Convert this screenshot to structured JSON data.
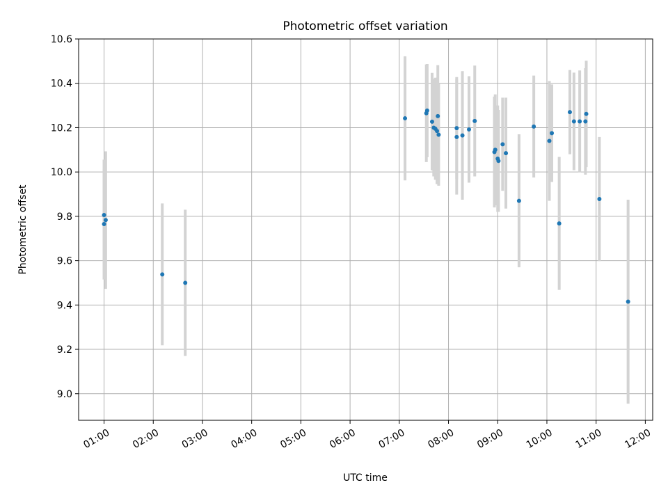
{
  "chart_data": {
    "type": "scatter",
    "title": "Photometric offset variation",
    "xlabel": "UTC time",
    "ylabel": "Photometric offset",
    "x_ticks": [
      "01:00",
      "02:00",
      "03:00",
      "04:00",
      "05:00",
      "06:00",
      "07:00",
      "08:00",
      "09:00",
      "10:00",
      "11:00",
      "12:00"
    ],
    "y_ticks": [
      "9.0",
      "9.2",
      "9.4",
      "9.6",
      "9.8",
      "10.0",
      "10.2",
      "10.4",
      "10.6"
    ],
    "xlim": [
      "00:29",
      "12:09"
    ],
    "ylim": [
      8.88,
      10.6
    ],
    "grid": true,
    "colors": {
      "points": "#1f77b4",
      "errorbars": "#d3d3d3",
      "grid": "#b0b0b0"
    },
    "points": [
      {
        "x": "01:00",
        "y": 9.806,
        "err": 0.25
      },
      {
        "x": "01:00",
        "y": 9.765,
        "err": 0.25
      },
      {
        "x": "01:02",
        "y": 9.783,
        "err": 0.31
      },
      {
        "x": "02:11",
        "y": 9.538,
        "err": 0.32
      },
      {
        "x": "02:39",
        "y": 9.5,
        "err": 0.33
      },
      {
        "x": "07:07",
        "y": 10.242,
        "err": 0.28
      },
      {
        "x": "07:33",
        "y": 10.265,
        "err": 0.22
      },
      {
        "x": "07:34",
        "y": 10.277,
        "err": 0.21
      },
      {
        "x": "07:40",
        "y": 10.227,
        "err": 0.22
      },
      {
        "x": "07:42",
        "y": 10.2,
        "err": 0.22
      },
      {
        "x": "07:44",
        "y": 10.195,
        "err": 0.23
      },
      {
        "x": "07:46",
        "y": 10.185,
        "err": 0.24
      },
      {
        "x": "07:47",
        "y": 10.252,
        "err": 0.23
      },
      {
        "x": "07:48",
        "y": 10.168,
        "err": 0.23
      },
      {
        "x": "08:10",
        "y": 10.158,
        "err": 0.26
      },
      {
        "x": "08:10",
        "y": 10.198,
        "err": 0.23
      },
      {
        "x": "08:17",
        "y": 10.165,
        "err": 0.29
      },
      {
        "x": "08:25",
        "y": 10.192,
        "err": 0.24
      },
      {
        "x": "08:32",
        "y": 10.23,
        "err": 0.25
      },
      {
        "x": "08:56",
        "y": 10.09,
        "err": 0.25
      },
      {
        "x": "08:57",
        "y": 10.1,
        "err": 0.25
      },
      {
        "x": "09:00",
        "y": 10.06,
        "err": 0.24
      },
      {
        "x": "09:01",
        "y": 10.05,
        "err": 0.23
      },
      {
        "x": "09:06",
        "y": 10.125,
        "err": 0.21
      },
      {
        "x": "09:10",
        "y": 10.085,
        "err": 0.25
      },
      {
        "x": "09:26",
        "y": 9.87,
        "err": 0.3
      },
      {
        "x": "09:44",
        "y": 10.205,
        "err": 0.23
      },
      {
        "x": "10:03",
        "y": 10.14,
        "err": 0.27
      },
      {
        "x": "10:06",
        "y": 10.175,
        "err": 0.22
      },
      {
        "x": "10:15",
        "y": 9.768,
        "err": 0.3
      },
      {
        "x": "10:28",
        "y": 10.27,
        "err": 0.19
      },
      {
        "x": "10:33",
        "y": 10.228,
        "err": 0.22
      },
      {
        "x": "10:40",
        "y": 10.228,
        "err": 0.23
      },
      {
        "x": "10:47",
        "y": 10.228,
        "err": 0.24
      },
      {
        "x": "10:48",
        "y": 10.262,
        "err": 0.24
      },
      {
        "x": "11:04",
        "y": 9.878,
        "err": 0.28
      },
      {
        "x": "11:39",
        "y": 9.415,
        "err": 0.46
      }
    ]
  }
}
